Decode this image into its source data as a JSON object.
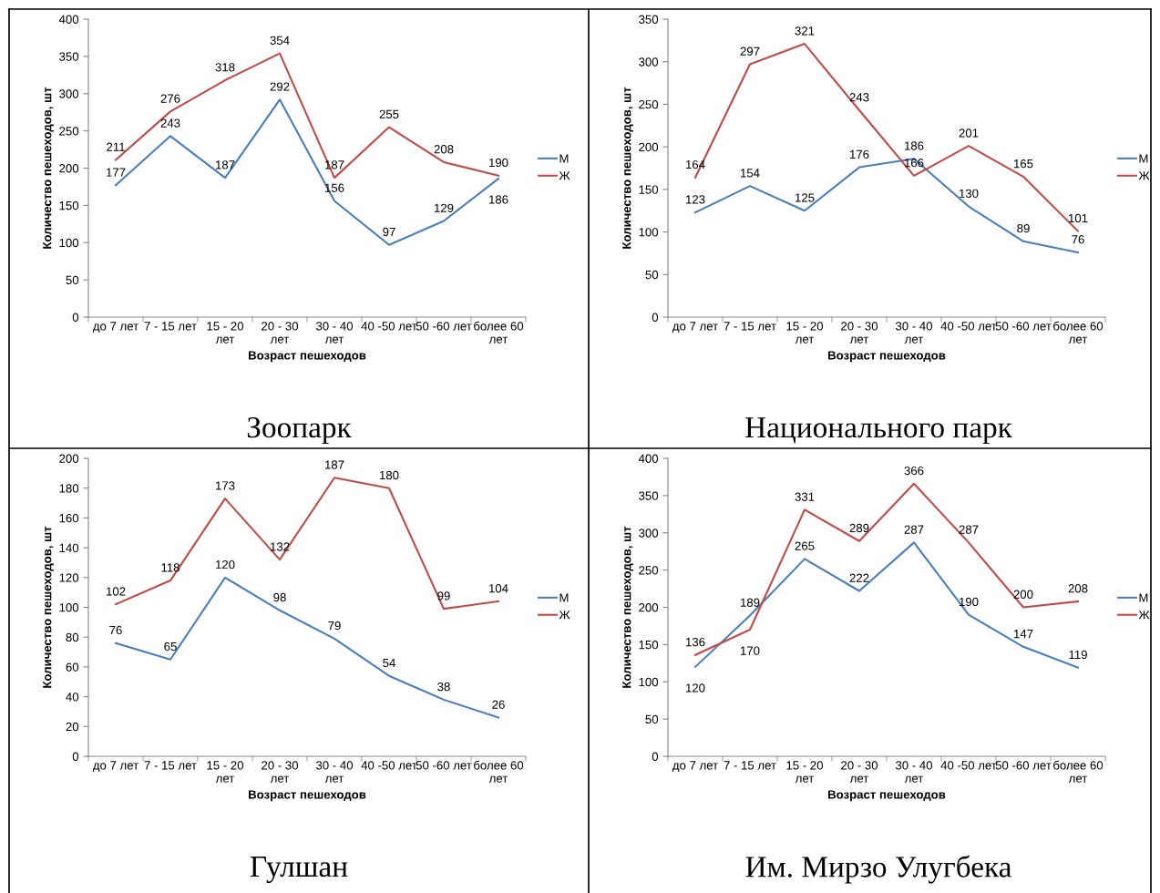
{
  "chart_data": [
    {
      "type": "line",
      "title": "Зоопарк",
      "xlabel": "Возраст пешеходов",
      "ylabel": "Количество пешеходов, шт",
      "categories": [
        "до 7 лет",
        "7 - 15 лет",
        "15 - 20 лет",
        "20 - 30 лет",
        "30 - 40 лет",
        "40 -50 лет",
        "50 -60 лет",
        "более 60 лет"
      ],
      "series": [
        {
          "name": "М",
          "color": "#4a7ebb",
          "values": [
            177,
            243,
            187,
            292,
            156,
            97,
            129,
            186
          ]
        },
        {
          "name": "Ж",
          "color": "#be4b48",
          "values": [
            211,
            276,
            318,
            354,
            187,
            255,
            208,
            190
          ]
        }
      ],
      "ylim": [
        0,
        400
      ],
      "yticks": [
        0,
        50,
        100,
        150,
        200,
        250,
        300,
        350,
        400
      ],
      "data_labels": true,
      "legend": "right",
      "grid": false
    },
    {
      "type": "line",
      "title": "Национального парк",
      "xlabel": "Возраст пешеходов",
      "ylabel": "Количество пешеходов, шт",
      "categories": [
        "до 7 лет",
        "7 - 15 лет",
        "15 - 20 лет",
        "20 - 30 лет",
        "30 - 40 лет",
        "40 -50 лет",
        "50 -60 лет",
        "более 60 лет"
      ],
      "series": [
        {
          "name": "М",
          "color": "#4a7ebb",
          "values": [
            123,
            154,
            125,
            176,
            186,
            130,
            89,
            76
          ]
        },
        {
          "name": "Ж",
          "color": "#be4b48",
          "values": [
            164,
            297,
            321,
            243,
            166,
            201,
            165,
            101
          ]
        }
      ],
      "ylim": [
        0,
        350
      ],
      "yticks": [
        0,
        50,
        100,
        150,
        200,
        250,
        300,
        350
      ],
      "data_labels": true,
      "legend": "right",
      "grid": false
    },
    {
      "type": "line",
      "title": "Гулшан",
      "xlabel": "Возраст пешеходов",
      "ylabel": "Количество пешеходов, шт",
      "categories": [
        "до 7 лет",
        "7 - 15 лет",
        "15 - 20 лет",
        "20 - 30 лет",
        "30 - 40 лет",
        "40 -50 лет",
        "50 -60 лет",
        "более 60 лет"
      ],
      "series": [
        {
          "name": "М",
          "color": "#4a7ebb",
          "values": [
            76,
            65,
            120,
            98,
            79,
            54,
            38,
            26
          ]
        },
        {
          "name": "Ж",
          "color": "#be4b48",
          "values": [
            102,
            118,
            173,
            132,
            187,
            180,
            99,
            104
          ]
        }
      ],
      "ylim": [
        0,
        200
      ],
      "yticks": [
        0,
        20,
        40,
        60,
        80,
        100,
        120,
        140,
        160,
        180,
        200
      ],
      "data_labels": true,
      "legend": "right",
      "grid": false
    },
    {
      "type": "line",
      "title": "Им. Мирзо Улугбека",
      "xlabel": "Возраст пешеходов",
      "ylabel": "Количество пешеходов, шт",
      "categories": [
        "до 7 лет",
        "7 - 15 лет",
        "15 - 20 лет",
        "20 - 30 лет",
        "30 - 40 лет",
        "40 -50 лет",
        "50 -60 лет",
        "более 60 лет"
      ],
      "series": [
        {
          "name": "М",
          "color": "#4a7ebb",
          "values": [
            120,
            189,
            265,
            222,
            287,
            190,
            147,
            119
          ]
        },
        {
          "name": "Ж",
          "color": "#be4b48",
          "values": [
            136,
            170,
            331,
            289,
            366,
            287,
            200,
            208
          ]
        }
      ],
      "ylim": [
        0,
        400
      ],
      "yticks": [
        0,
        50,
        100,
        150,
        200,
        250,
        300,
        350,
        400
      ],
      "data_labels": true,
      "legend": "right",
      "grid": false
    }
  ]
}
